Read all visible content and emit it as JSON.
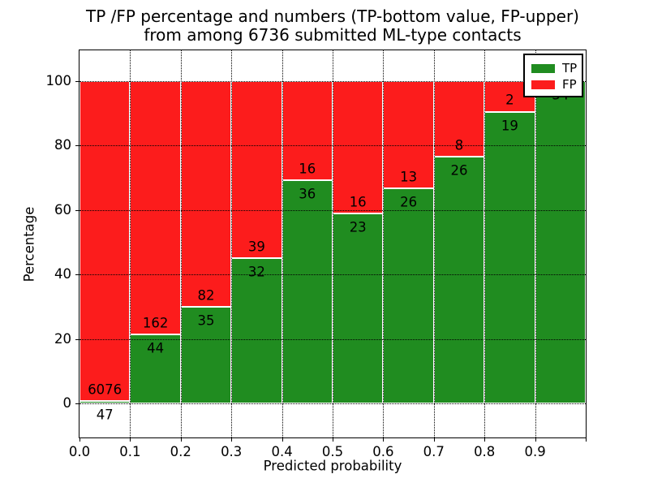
{
  "title": {
    "line1": "TP /FP percentage and numbers (TP-bottom value, FP-upper)",
    "line2": "from among 6736 submitted ML-type contacts"
  },
  "axes": {
    "xlabel": "Predicted probability",
    "ylabel": "Percentage",
    "x_tick_labels": [
      "0.0",
      "0.1",
      "0.2",
      "0.3",
      "0.4",
      "0.5",
      "0.6",
      "0.7",
      "0.8",
      "0.9"
    ],
    "y_tick_labels": [
      "0",
      "20",
      "40",
      "60",
      "80",
      "100"
    ]
  },
  "legend": {
    "items": [
      {
        "label": "TP",
        "color": "#208c20"
      },
      {
        "label": "FP",
        "color": "#fc1c1c"
      }
    ]
  },
  "chart_data": {
    "type": "bar",
    "stacked": true,
    "normalized": "percent",
    "title": "TP /FP percentage and numbers (TP-bottom value, FP-upper) from among 6736 submitted ML-type contacts",
    "xlabel": "Predicted probability",
    "ylabel": "Percentage",
    "total_contacts": 6736,
    "bins": [
      0.0,
      0.1,
      0.2,
      0.3,
      0.4,
      0.5,
      0.6,
      0.7,
      0.8,
      0.9
    ],
    "bin_width": 0.1,
    "series": [
      {
        "name": "TP",
        "color": "#208c20",
        "counts": [
          47,
          44,
          35,
          32,
          36,
          23,
          26,
          26,
          19,
          34
        ]
      },
      {
        "name": "FP",
        "color": "#fc1c1c",
        "counts": [
          6076,
          162,
          82,
          39,
          16,
          16,
          13,
          8,
          2,
          0
        ]
      }
    ],
    "tp_percent_heights": [
      0.8,
      21.4,
      29.9,
      45.1,
      69.2,
      59.0,
      66.7,
      76.5,
      90.5,
      100.0
    ],
    "xlim": [
      0.0,
      1.0
    ],
    "ylim": [
      -10.5,
      109.5
    ],
    "grid": true,
    "legend_position": "upper right"
  }
}
